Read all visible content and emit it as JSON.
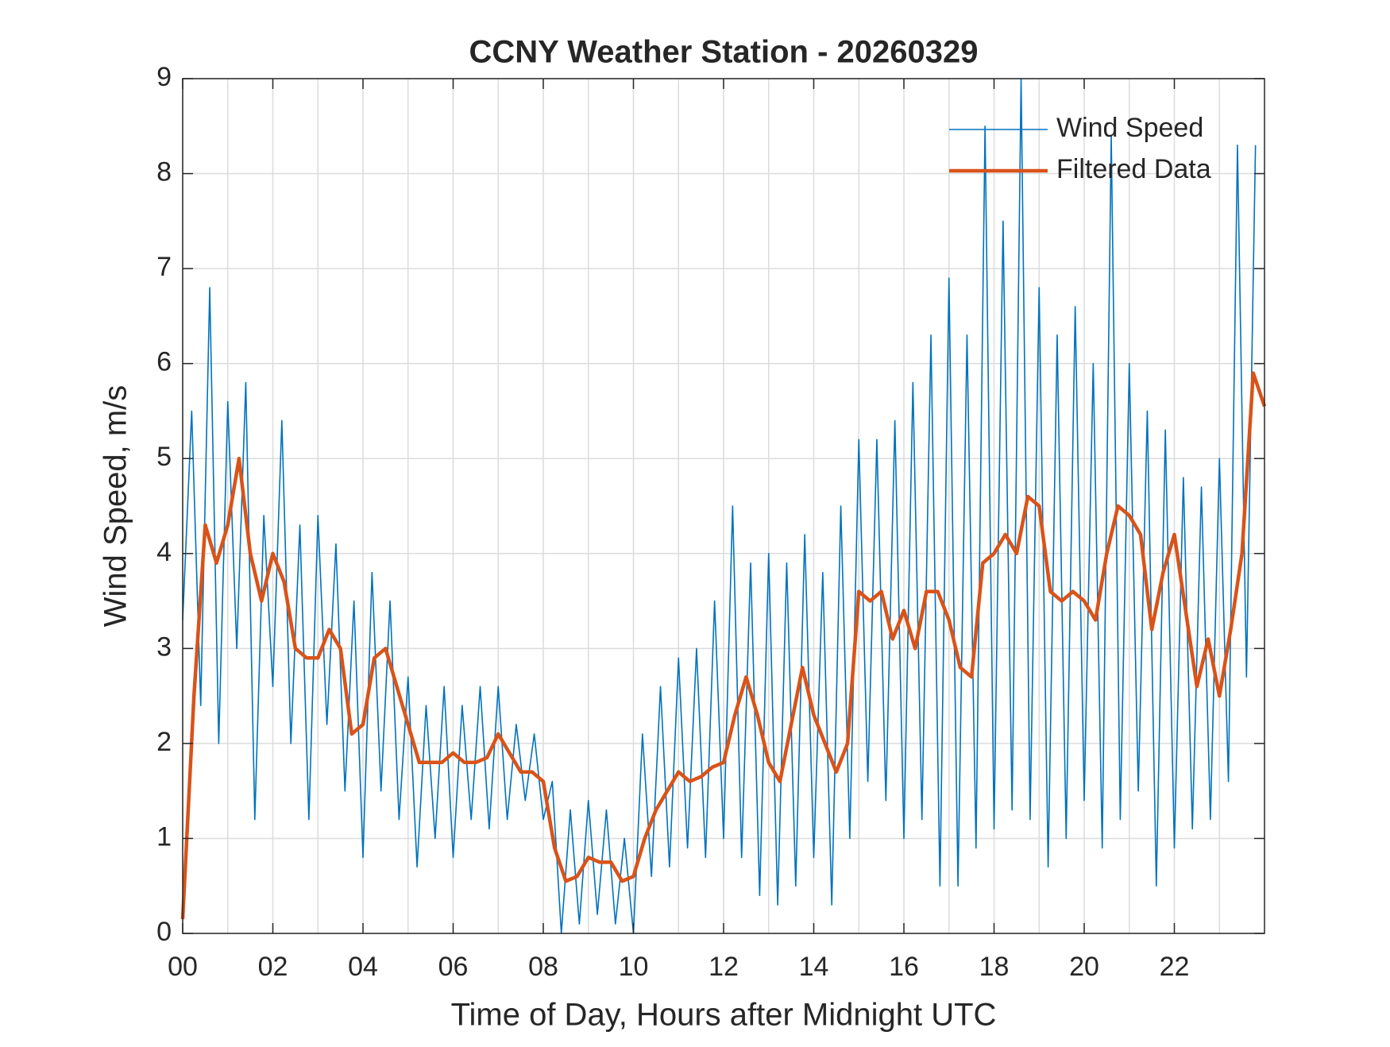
{
  "chart_data": {
    "type": "line",
    "title": "CCNY Weather Station - 20260329",
    "xlabel": "Time of Day, Hours after Midnight UTC",
    "ylabel": "Wind Speed, m/s",
    "xlim": [
      0,
      24
    ],
    "ylim": [
      0,
      9
    ],
    "xticks": [
      {
        "value": 0,
        "label": "00"
      },
      {
        "value": 2,
        "label": "02"
      },
      {
        "value": 4,
        "label": "04"
      },
      {
        "value": 6,
        "label": "06"
      },
      {
        "value": 8,
        "label": "08"
      },
      {
        "value": 10,
        "label": "10"
      },
      {
        "value": 12,
        "label": "12"
      },
      {
        "value": 14,
        "label": "14"
      },
      {
        "value": 16,
        "label": "16"
      },
      {
        "value": 18,
        "label": "18"
      },
      {
        "value": 20,
        "label": "20"
      },
      {
        "value": 22,
        "label": "22"
      }
    ],
    "xminorticks": [
      1,
      3,
      5,
      7,
      9,
      11,
      13,
      15,
      17,
      19,
      21,
      23
    ],
    "yticks": [
      0,
      1,
      2,
      3,
      4,
      5,
      6,
      7,
      8,
      9
    ],
    "grid": true,
    "legend_loc": "northeast",
    "series": [
      {
        "name": "Wind Speed",
        "color": "#0072BD",
        "linewidth": 1.6,
        "x": [
          0,
          0.2,
          0.4,
          0.6,
          0.8,
          1,
          1.2,
          1.4,
          1.6,
          1.8,
          2,
          2.2,
          2.4,
          2.6,
          2.8,
          3,
          3.2,
          3.4,
          3.6,
          3.8,
          4,
          4.2,
          4.4,
          4.6,
          4.8,
          5,
          5.2,
          5.4,
          5.6,
          5.8,
          6,
          6.2,
          6.4,
          6.6,
          6.8,
          7,
          7.2,
          7.4,
          7.6,
          7.8,
          8,
          8.2,
          8.4,
          8.6,
          8.8,
          9,
          9.2,
          9.4,
          9.6,
          9.8,
          10,
          10.2,
          10.4,
          10.6,
          10.8,
          11,
          11.2,
          11.4,
          11.6,
          11.8,
          12,
          12.2,
          12.4,
          12.6,
          12.8,
          13,
          13.2,
          13.4,
          13.6,
          13.8,
          14,
          14.2,
          14.4,
          14.6,
          14.8,
          15,
          15.2,
          15.4,
          15.6,
          15.8,
          16,
          16.2,
          16.4,
          16.6,
          16.8,
          17,
          17.2,
          17.4,
          17.6,
          17.8,
          18,
          18.2,
          18.4,
          18.6,
          18.8,
          19,
          19.2,
          19.4,
          19.6,
          19.8,
          20,
          20.2,
          20.4,
          20.6,
          20.8,
          21,
          21.2,
          21.4,
          21.6,
          21.8,
          22,
          22.2,
          22.4,
          22.6,
          22.8,
          23,
          23.2,
          23.4,
          23.6,
          23.8
        ],
        "values": [
          3.3,
          5.5,
          2.4,
          6.8,
          2.0,
          5.6,
          3.0,
          5.8,
          1.2,
          4.4,
          2.6,
          5.4,
          2.0,
          4.3,
          1.2,
          4.4,
          2.2,
          4.1,
          1.5,
          3.5,
          0.8,
          3.8,
          1.5,
          3.5,
          1.2,
          2.7,
          0.7,
          2.4,
          1.0,
          2.6,
          0.8,
          2.4,
          1.2,
          2.6,
          1.1,
          2.6,
          1.2,
          2.2,
          1.4,
          2.1,
          1.2,
          1.6,
          0.0,
          1.3,
          0.1,
          1.4,
          0.2,
          1.3,
          0.1,
          1.0,
          0.0,
          2.1,
          0.6,
          2.6,
          0.7,
          2.9,
          0.9,
          3.0,
          0.8,
          3.5,
          1.0,
          4.5,
          0.8,
          3.9,
          0.4,
          4.0,
          0.3,
          3.9,
          0.5,
          4.2,
          0.8,
          3.8,
          0.3,
          4.5,
          1.0,
          5.2,
          1.6,
          5.2,
          1.4,
          5.4,
          1.0,
          5.8,
          1.2,
          6.3,
          0.5,
          6.9,
          0.5,
          6.3,
          0.9,
          8.5,
          1.1,
          7.5,
          1.3,
          9.0,
          1.2,
          6.8,
          0.7,
          6.3,
          1.0,
          6.6,
          1.4,
          6.0,
          0.9,
          8.4,
          1.2,
          6.0,
          1.5,
          5.5,
          0.5,
          5.3,
          0.9,
          4.8,
          1.1,
          4.7,
          1.2,
          5.0,
          1.6,
          8.3,
          2.7,
          8.3
        ]
      },
      {
        "name": "Filtered Data",
        "color": "#D95319",
        "linewidth": 4.5,
        "x": [
          0,
          0.25,
          0.5,
          0.75,
          1,
          1.25,
          1.5,
          1.75,
          2,
          2.25,
          2.5,
          2.75,
          3,
          3.25,
          3.5,
          3.75,
          4,
          4.25,
          4.5,
          4.75,
          5,
          5.25,
          5.5,
          5.75,
          6,
          6.25,
          6.5,
          6.75,
          7,
          7.25,
          7.5,
          7.75,
          8,
          8.25,
          8.5,
          8.75,
          9,
          9.25,
          9.5,
          9.75,
          10,
          10.25,
          10.5,
          10.75,
          11,
          11.25,
          11.5,
          11.75,
          12,
          12.25,
          12.5,
          12.75,
          13,
          13.25,
          13.5,
          13.75,
          14,
          14.25,
          14.5,
          14.75,
          15,
          15.25,
          15.5,
          15.75,
          16,
          16.25,
          16.5,
          16.75,
          17,
          17.25,
          17.5,
          17.75,
          18,
          18.25,
          18.5,
          18.75,
          19,
          19.25,
          19.5,
          19.75,
          20,
          20.25,
          20.5,
          20.75,
          21,
          21.25,
          21.5,
          21.75,
          22,
          22.25,
          22.5,
          22.75,
          23,
          23.25,
          23.5,
          23.75,
          24
        ],
        "values": [
          0.15,
          2.5,
          4.3,
          3.9,
          4.3,
          5.0,
          4.0,
          3.5,
          4.0,
          3.7,
          3.0,
          2.9,
          2.9,
          3.2,
          3.0,
          2.1,
          2.2,
          2.9,
          3.0,
          2.6,
          2.2,
          1.8,
          1.8,
          1.8,
          1.9,
          1.8,
          1.8,
          1.85,
          2.1,
          1.9,
          1.7,
          1.7,
          1.6,
          0.9,
          0.55,
          0.6,
          0.8,
          0.75,
          0.75,
          0.55,
          0.6,
          1.0,
          1.3,
          1.5,
          1.7,
          1.6,
          1.65,
          1.75,
          1.8,
          2.3,
          2.7,
          2.3,
          1.8,
          1.6,
          2.2,
          2.8,
          2.3,
          2.0,
          1.7,
          2.0,
          3.6,
          3.5,
          3.6,
          3.1,
          3.4,
          3.0,
          3.6,
          3.6,
          3.3,
          2.8,
          2.7,
          3.9,
          4.0,
          4.2,
          4.0,
          4.6,
          4.5,
          3.6,
          3.5,
          3.6,
          3.5,
          3.3,
          4.0,
          4.5,
          4.4,
          4.2,
          3.2,
          3.8,
          4.2,
          3.4,
          2.6,
          3.1,
          2.5,
          3.2,
          4.0,
          5.9,
          5.55
        ]
      }
    ]
  }
}
